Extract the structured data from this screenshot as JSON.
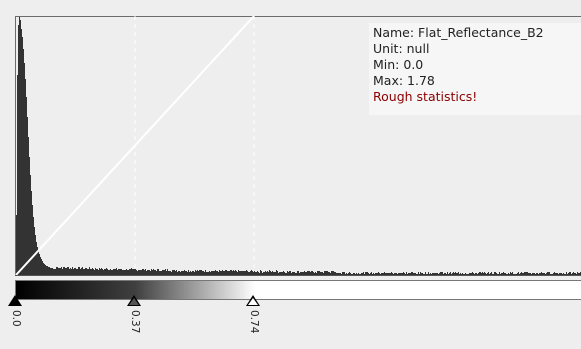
{
  "info": {
    "name": "Name: Flat_Reflectance_B2",
    "unit": "Unit: null",
    "min": "Min: 0.0",
    "max": "Max: 1.78",
    "warning": "Rough statistics!"
  },
  "sliders": [
    {
      "label": "0.0",
      "value": 0.0,
      "color": "#000000"
    },
    {
      "label": "0.37",
      "value": 0.37,
      "color": "#404040"
    },
    {
      "label": "0.74",
      "value": 0.74,
      "color": "#ffffff"
    }
  ],
  "colors": {
    "histogram": "#333333",
    "transfer_line": "#ffffff",
    "warning": "#8b0000"
  }
}
